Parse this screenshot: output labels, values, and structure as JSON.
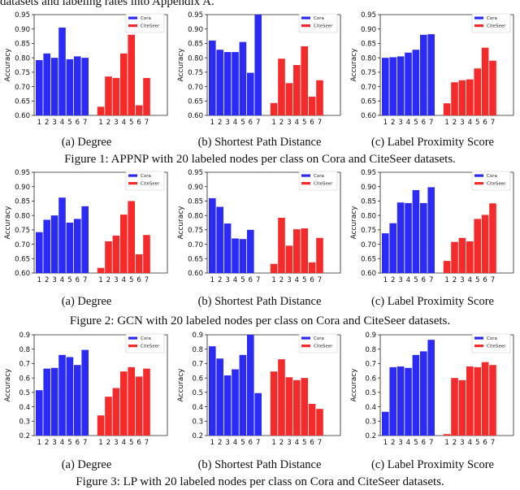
{
  "intro_text": "datasets and labeling rates into Appendix A.",
  "colors": {
    "cora": "#2b2bf5",
    "citeseer": "#f52b2b"
  },
  "figures": [
    {
      "caption": "Figure 1: APPNP with 20 labeled nodes per class on Cora and CiteSeer datasets.",
      "subcaptions": [
        "(a)  Degree",
        "(b)  Shortest Path Distance",
        "(c)  Label Proximity Score"
      ]
    },
    {
      "caption": "Figure 2: GCN with 20 labeled nodes per class on Cora and CiteSeer datasets.",
      "subcaptions": [
        "(a)  Degree",
        "(b)  Shortest Path Distance",
        "(c)  Label Proximity Score"
      ]
    },
    {
      "caption": "Figure 3: LP with 20 labeled nodes per class on Cora and CiteSeer datasets.",
      "subcaptions": [
        "(a)  Degree",
        "(b)  Shortest Path Distance",
        "(c)  Label Proximity Score"
      ]
    }
  ],
  "chart_data": [
    {
      "type": "bar",
      "figure": 1,
      "panel": "a",
      "ylabel": "Accuracy",
      "ylim": [
        0.6,
        0.95
      ],
      "yticks": [
        "0.60",
        "0.65",
        "0.70",
        "0.75",
        "0.80",
        "0.85",
        "0.90",
        "0.95"
      ],
      "categories": [
        "1",
        "2",
        "3",
        "4",
        "5",
        "6",
        "7"
      ],
      "legend": [
        "Cora",
        "CiteSeer"
      ],
      "legend_position": "top-right",
      "series": [
        {
          "name": "Cora",
          "values": [
            0.792,
            0.815,
            0.8,
            0.905,
            0.795,
            0.805,
            0.8
          ]
        },
        {
          "name": "CiteSeer",
          "values": [
            0.63,
            0.735,
            0.73,
            0.815,
            0.88,
            0.635,
            0.73
          ]
        }
      ]
    },
    {
      "type": "bar",
      "figure": 1,
      "panel": "b",
      "ylabel": "Accuracy",
      "ylim": [
        0.6,
        0.95
      ],
      "yticks": [
        "0.60",
        "0.65",
        "0.70",
        "0.75",
        "0.80",
        "0.85",
        "0.90",
        "0.95"
      ],
      "categories": [
        "1",
        "2",
        "3",
        "4",
        "5",
        "6",
        "7"
      ],
      "legend": [
        "Cora",
        "CiteSeer"
      ],
      "legend_position": "top-right",
      "series": [
        {
          "name": "Cora",
          "values": [
            0.86,
            0.828,
            0.82,
            0.82,
            0.855,
            0.748,
            0.95
          ]
        },
        {
          "name": "CiteSeer",
          "values": [
            0.643,
            0.797,
            0.712,
            0.775,
            0.84,
            0.665,
            0.722
          ]
        }
      ]
    },
    {
      "type": "bar",
      "figure": 1,
      "panel": "c",
      "ylabel": "Accuracy",
      "ylim": [
        0.6,
        0.95
      ],
      "yticks": [
        "0.60",
        "0.65",
        "0.70",
        "0.75",
        "0.80",
        "0.85",
        "0.90",
        "0.95"
      ],
      "categories": [
        "1",
        "2",
        "3",
        "4",
        "5",
        "6",
        "7"
      ],
      "legend": [
        "Cora",
        "CiteSeer"
      ],
      "legend_position": "top-right",
      "series": [
        {
          "name": "Cora",
          "values": [
            0.8,
            0.802,
            0.805,
            0.818,
            0.828,
            0.88,
            0.882
          ]
        },
        {
          "name": "CiteSeer",
          "values": [
            0.642,
            0.715,
            0.722,
            0.725,
            0.763,
            0.835,
            0.79
          ]
        }
      ]
    },
    {
      "type": "bar",
      "figure": 2,
      "panel": "a",
      "ylabel": "Accuracy",
      "ylim": [
        0.6,
        0.95
      ],
      "yticks": [
        "0.60",
        "0.65",
        "0.70",
        "0.75",
        "0.80",
        "0.85",
        "0.90",
        "0.95"
      ],
      "categories": [
        "1",
        "2",
        "3",
        "4",
        "5",
        "6",
        "7"
      ],
      "legend": [
        "Cora",
        "CiteSeer"
      ],
      "legend_position": "top-right",
      "series": [
        {
          "name": "Cora",
          "values": [
            0.742,
            0.785,
            0.8,
            0.862,
            0.775,
            0.788,
            0.832
          ]
        },
        {
          "name": "CiteSeer",
          "values": [
            0.618,
            0.71,
            0.73,
            0.803,
            0.85,
            0.665,
            0.732
          ]
        }
      ]
    },
    {
      "type": "bar",
      "figure": 2,
      "panel": "b",
      "ylabel": "Accuracy",
      "ylim": [
        0.6,
        0.95
      ],
      "yticks": [
        "0.60",
        "0.65",
        "0.70",
        "0.75",
        "0.80",
        "0.85",
        "0.90",
        "0.95"
      ],
      "categories": [
        "1",
        "2",
        "3",
        "4",
        "5",
        "6",
        "7"
      ],
      "legend": [
        "Cora",
        "CiteSeer"
      ],
      "legend_position": "top-right",
      "series": [
        {
          "name": "Cora",
          "values": [
            0.86,
            0.83,
            0.772,
            0.72,
            0.718,
            0.75,
            null
          ]
        },
        {
          "name": "CiteSeer",
          "values": [
            0.632,
            0.792,
            0.695,
            0.752,
            0.755,
            0.637,
            0.722
          ]
        }
      ]
    },
    {
      "type": "bar",
      "figure": 2,
      "panel": "c",
      "ylabel": "Accuracy",
      "ylim": [
        0.6,
        0.95
      ],
      "yticks": [
        "0.60",
        "0.65",
        "0.70",
        "0.75",
        "0.80",
        "0.85",
        "0.90",
        "0.95"
      ],
      "categories": [
        "1",
        "2",
        "3",
        "4",
        "5",
        "6",
        "7"
      ],
      "legend": [
        "Cora",
        "CiteSeer"
      ],
      "legend_position": "top-right",
      "series": [
        {
          "name": "Cora",
          "values": [
            0.738,
            0.773,
            0.845,
            0.843,
            0.888,
            0.843,
            0.898
          ]
        },
        {
          "name": "CiteSeer",
          "values": [
            0.642,
            0.708,
            0.722,
            0.71,
            0.788,
            0.802,
            0.842
          ]
        }
      ]
    },
    {
      "type": "bar",
      "figure": 3,
      "panel": "a",
      "ylabel": "Accuracy",
      "ylim": [
        0.2,
        0.9
      ],
      "yticks": [
        "0.2",
        "0.3",
        "0.4",
        "0.5",
        "0.6",
        "0.7",
        "0.8",
        "0.9"
      ],
      "categories": [
        "1",
        "2",
        "3",
        "4",
        "5",
        "6",
        "7"
      ],
      "legend": [
        "Cora",
        "CiteSeer"
      ],
      "legend_position": "top-right",
      "series": [
        {
          "name": "Cora",
          "values": [
            0.515,
            0.665,
            0.67,
            0.76,
            0.745,
            0.69,
            0.795
          ]
        },
        {
          "name": "CiteSeer",
          "values": [
            0.34,
            0.47,
            0.53,
            0.645,
            0.675,
            0.61,
            0.665
          ]
        }
      ]
    },
    {
      "type": "bar",
      "figure": 3,
      "panel": "b",
      "ylabel": "Accuracy",
      "ylim": [
        0.2,
        0.9
      ],
      "yticks": [
        "0.2",
        "0.3",
        "0.4",
        "0.5",
        "0.6",
        "0.7",
        "0.8",
        "0.9"
      ],
      "categories": [
        "1",
        "2",
        "3",
        "4",
        "5",
        "6",
        "7"
      ],
      "legend": [
        "Cora",
        "CiteSeer"
      ],
      "legend_position": "top-right",
      "series": [
        {
          "name": "Cora",
          "values": [
            0.82,
            0.735,
            0.618,
            0.66,
            0.76,
            0.9,
            0.495
          ]
        },
        {
          "name": "CiteSeer",
          "values": [
            0.645,
            0.73,
            0.605,
            0.585,
            0.6,
            0.42,
            0.385
          ]
        }
      ]
    },
    {
      "type": "bar",
      "figure": 3,
      "panel": "c",
      "ylabel": "Accuracy",
      "ylim": [
        0.2,
        0.9
      ],
      "yticks": [
        "0.2",
        "0.3",
        "0.4",
        "0.5",
        "0.6",
        "0.7",
        "0.8",
        "0.9"
      ],
      "categories": [
        "1",
        "2",
        "3",
        "4",
        "5",
        "6",
        "7"
      ],
      "legend": [
        "Cora",
        "CiteSeer"
      ],
      "legend_position": "top-right",
      "series": [
        {
          "name": "Cora",
          "values": [
            0.365,
            0.675,
            0.68,
            0.67,
            0.76,
            0.785,
            0.865
          ]
        },
        {
          "name": "CiteSeer",
          "values": [
            0.21,
            0.6,
            0.585,
            0.68,
            0.675,
            0.71,
            0.69
          ]
        }
      ]
    }
  ]
}
